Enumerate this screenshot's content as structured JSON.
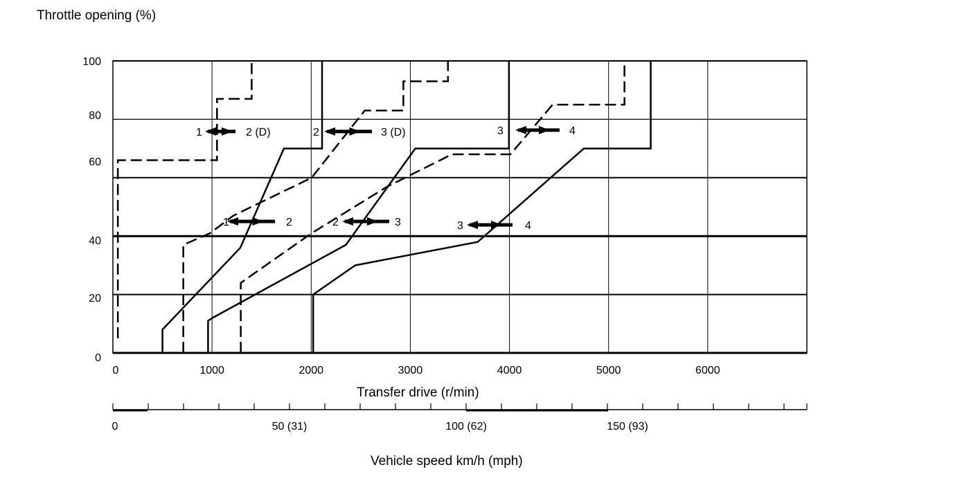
{
  "chart_data": {
    "type": "line",
    "title": "",
    "ylabel": "Throttle opening (%)",
    "xlabel": "Transfer drive (r/min)",
    "x2label": "Vehicle speed km/h (mph)",
    "xlim": [
      0,
      7000
    ],
    "ylim": [
      0,
      100
    ],
    "x_ticks": [
      "0",
      "1000",
      "2000",
      "3000",
      "4000",
      "5000",
      "6000"
    ],
    "x_tick_values": [
      0,
      1000,
      2000,
      3000,
      4000,
      5000,
      6000
    ],
    "y_ticks": [
      "100",
      "80",
      "60",
      "40",
      "20",
      "0"
    ],
    "y_tick_values": [
      100,
      80,
      60,
      40,
      20,
      0
    ],
    "speed_ticks": [
      "0",
      "50 (31)",
      "100 (62)",
      "150 (93)"
    ],
    "speed_tick_values": [
      0,
      50,
      100,
      150
    ],
    "speed_range_kmh": [
      0,
      196
    ],
    "grid": true,
    "series": [
      {
        "name": "1-2 (D) dashed",
        "style": "dashed",
        "points": [
          [
            50,
            5
          ],
          [
            50,
            66
          ],
          [
            1050,
            66
          ],
          [
            1050,
            87
          ],
          [
            1400,
            87
          ],
          [
            1400,
            100
          ]
        ]
      },
      {
        "name": "1-2 solid",
        "style": "solid",
        "points": [
          [
            500,
            0
          ],
          [
            500,
            8
          ],
          [
            1285,
            36
          ],
          [
            1725,
            70
          ],
          [
            2110,
            70
          ],
          [
            2110,
            100
          ]
        ]
      },
      {
        "name": "2-1 / 2-3 (D) dashed",
        "style": "dashed",
        "points": [
          [
            710,
            0
          ],
          [
            710,
            37
          ],
          [
            980,
            41
          ],
          [
            1215,
            47
          ],
          [
            2005,
            60
          ],
          [
            2540,
            83
          ],
          [
            2930,
            83
          ],
          [
            2930,
            93
          ],
          [
            3380,
            93
          ],
          [
            3380,
            100
          ]
        ]
      },
      {
        "name": "2-3 solid",
        "style": "solid",
        "points": [
          [
            960,
            0
          ],
          [
            960,
            11
          ],
          [
            1005,
            12
          ],
          [
            2350,
            37
          ],
          [
            3050,
            70
          ],
          [
            3995,
            70
          ],
          [
            3995,
            100
          ]
        ]
      },
      {
        "name": "3-2 / 3-4 dashed",
        "style": "dashed",
        "points": [
          [
            1290,
            0
          ],
          [
            1290,
            24
          ],
          [
            2005,
            41
          ],
          [
            2770,
            57
          ],
          [
            3420,
            68
          ],
          [
            4010,
            68
          ],
          [
            4435,
            85
          ],
          [
            5160,
            85
          ],
          [
            5160,
            100
          ]
        ]
      },
      {
        "name": "3-4 solid",
        "style": "solid",
        "points": [
          [
            2020,
            0
          ],
          [
            2020,
            20
          ],
          [
            2445,
            30
          ],
          [
            3680,
            38
          ],
          [
            4750,
            70
          ],
          [
            5425,
            70
          ],
          [
            5425,
            100
          ]
        ]
      }
    ],
    "annotations": [
      {
        "from": "1",
        "to": "2 (D)"
      },
      {
        "from": "2",
        "to": "3 (D)"
      },
      {
        "from": "3",
        "to": "4"
      },
      {
        "from": "1",
        "to": "2"
      },
      {
        "from": "2",
        "to": "3"
      },
      {
        "from": "3",
        "to": "4"
      }
    ]
  }
}
